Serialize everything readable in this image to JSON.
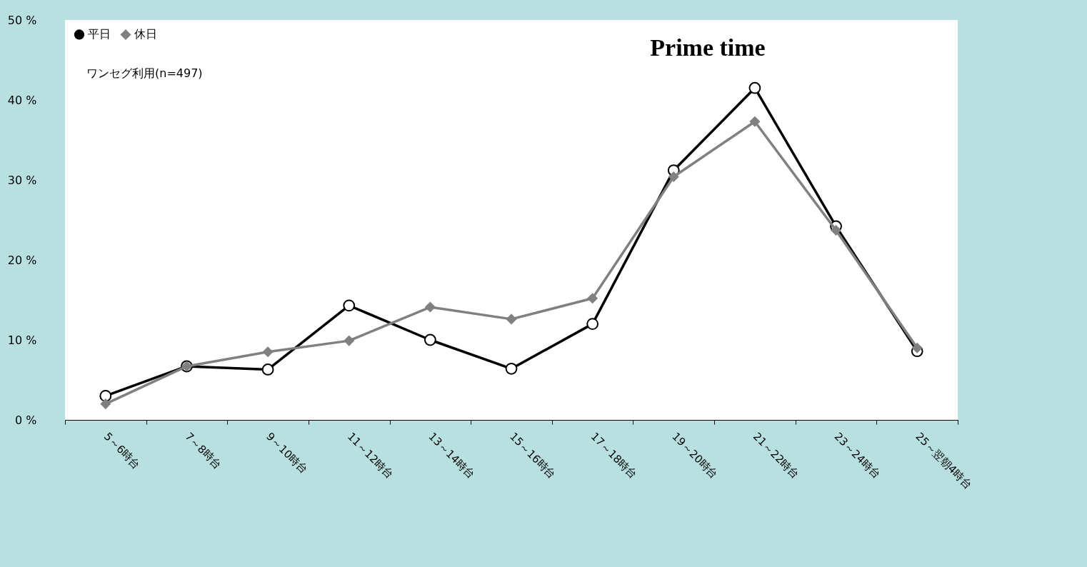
{
  "chart_data": {
    "type": "line",
    "categories": [
      "5～6時台",
      "7～8時台",
      "9～10時台",
      "11～12時台",
      "13～14時台",
      "15～16時台",
      "17～18時台",
      "19～20時台",
      "21～22時台",
      "23～24時台",
      "25～翌朝4時台"
    ],
    "series": [
      {
        "name": "平日",
        "color": "#000000",
        "marker": "circle",
        "values": [
          3.0,
          6.7,
          6.3,
          14.3,
          10.0,
          6.4,
          12.0,
          31.2,
          41.5,
          24.2,
          8.6
        ]
      },
      {
        "name": "休日",
        "color": "#808080",
        "marker": "diamond",
        "values": [
          2.0,
          6.7,
          8.5,
          9.9,
          14.1,
          12.6,
          15.2,
          30.4,
          37.3,
          23.7,
          9.0
        ]
      }
    ],
    "ylim": [
      0,
      50
    ],
    "yticks": [
      {
        "value": 0,
        "label": "0 %"
      },
      {
        "value": 10,
        "label": "10 %"
      },
      {
        "value": 20,
        "label": "20 %"
      },
      {
        "value": 30,
        "label": "30 %"
      },
      {
        "value": 40,
        "label": "40 %"
      },
      {
        "value": 50,
        "label": "50 %"
      }
    ],
    "annotations": [
      "ワンセグ利用(n=497)",
      "Prime time"
    ],
    "legend": "top left",
    "grid": false
  }
}
